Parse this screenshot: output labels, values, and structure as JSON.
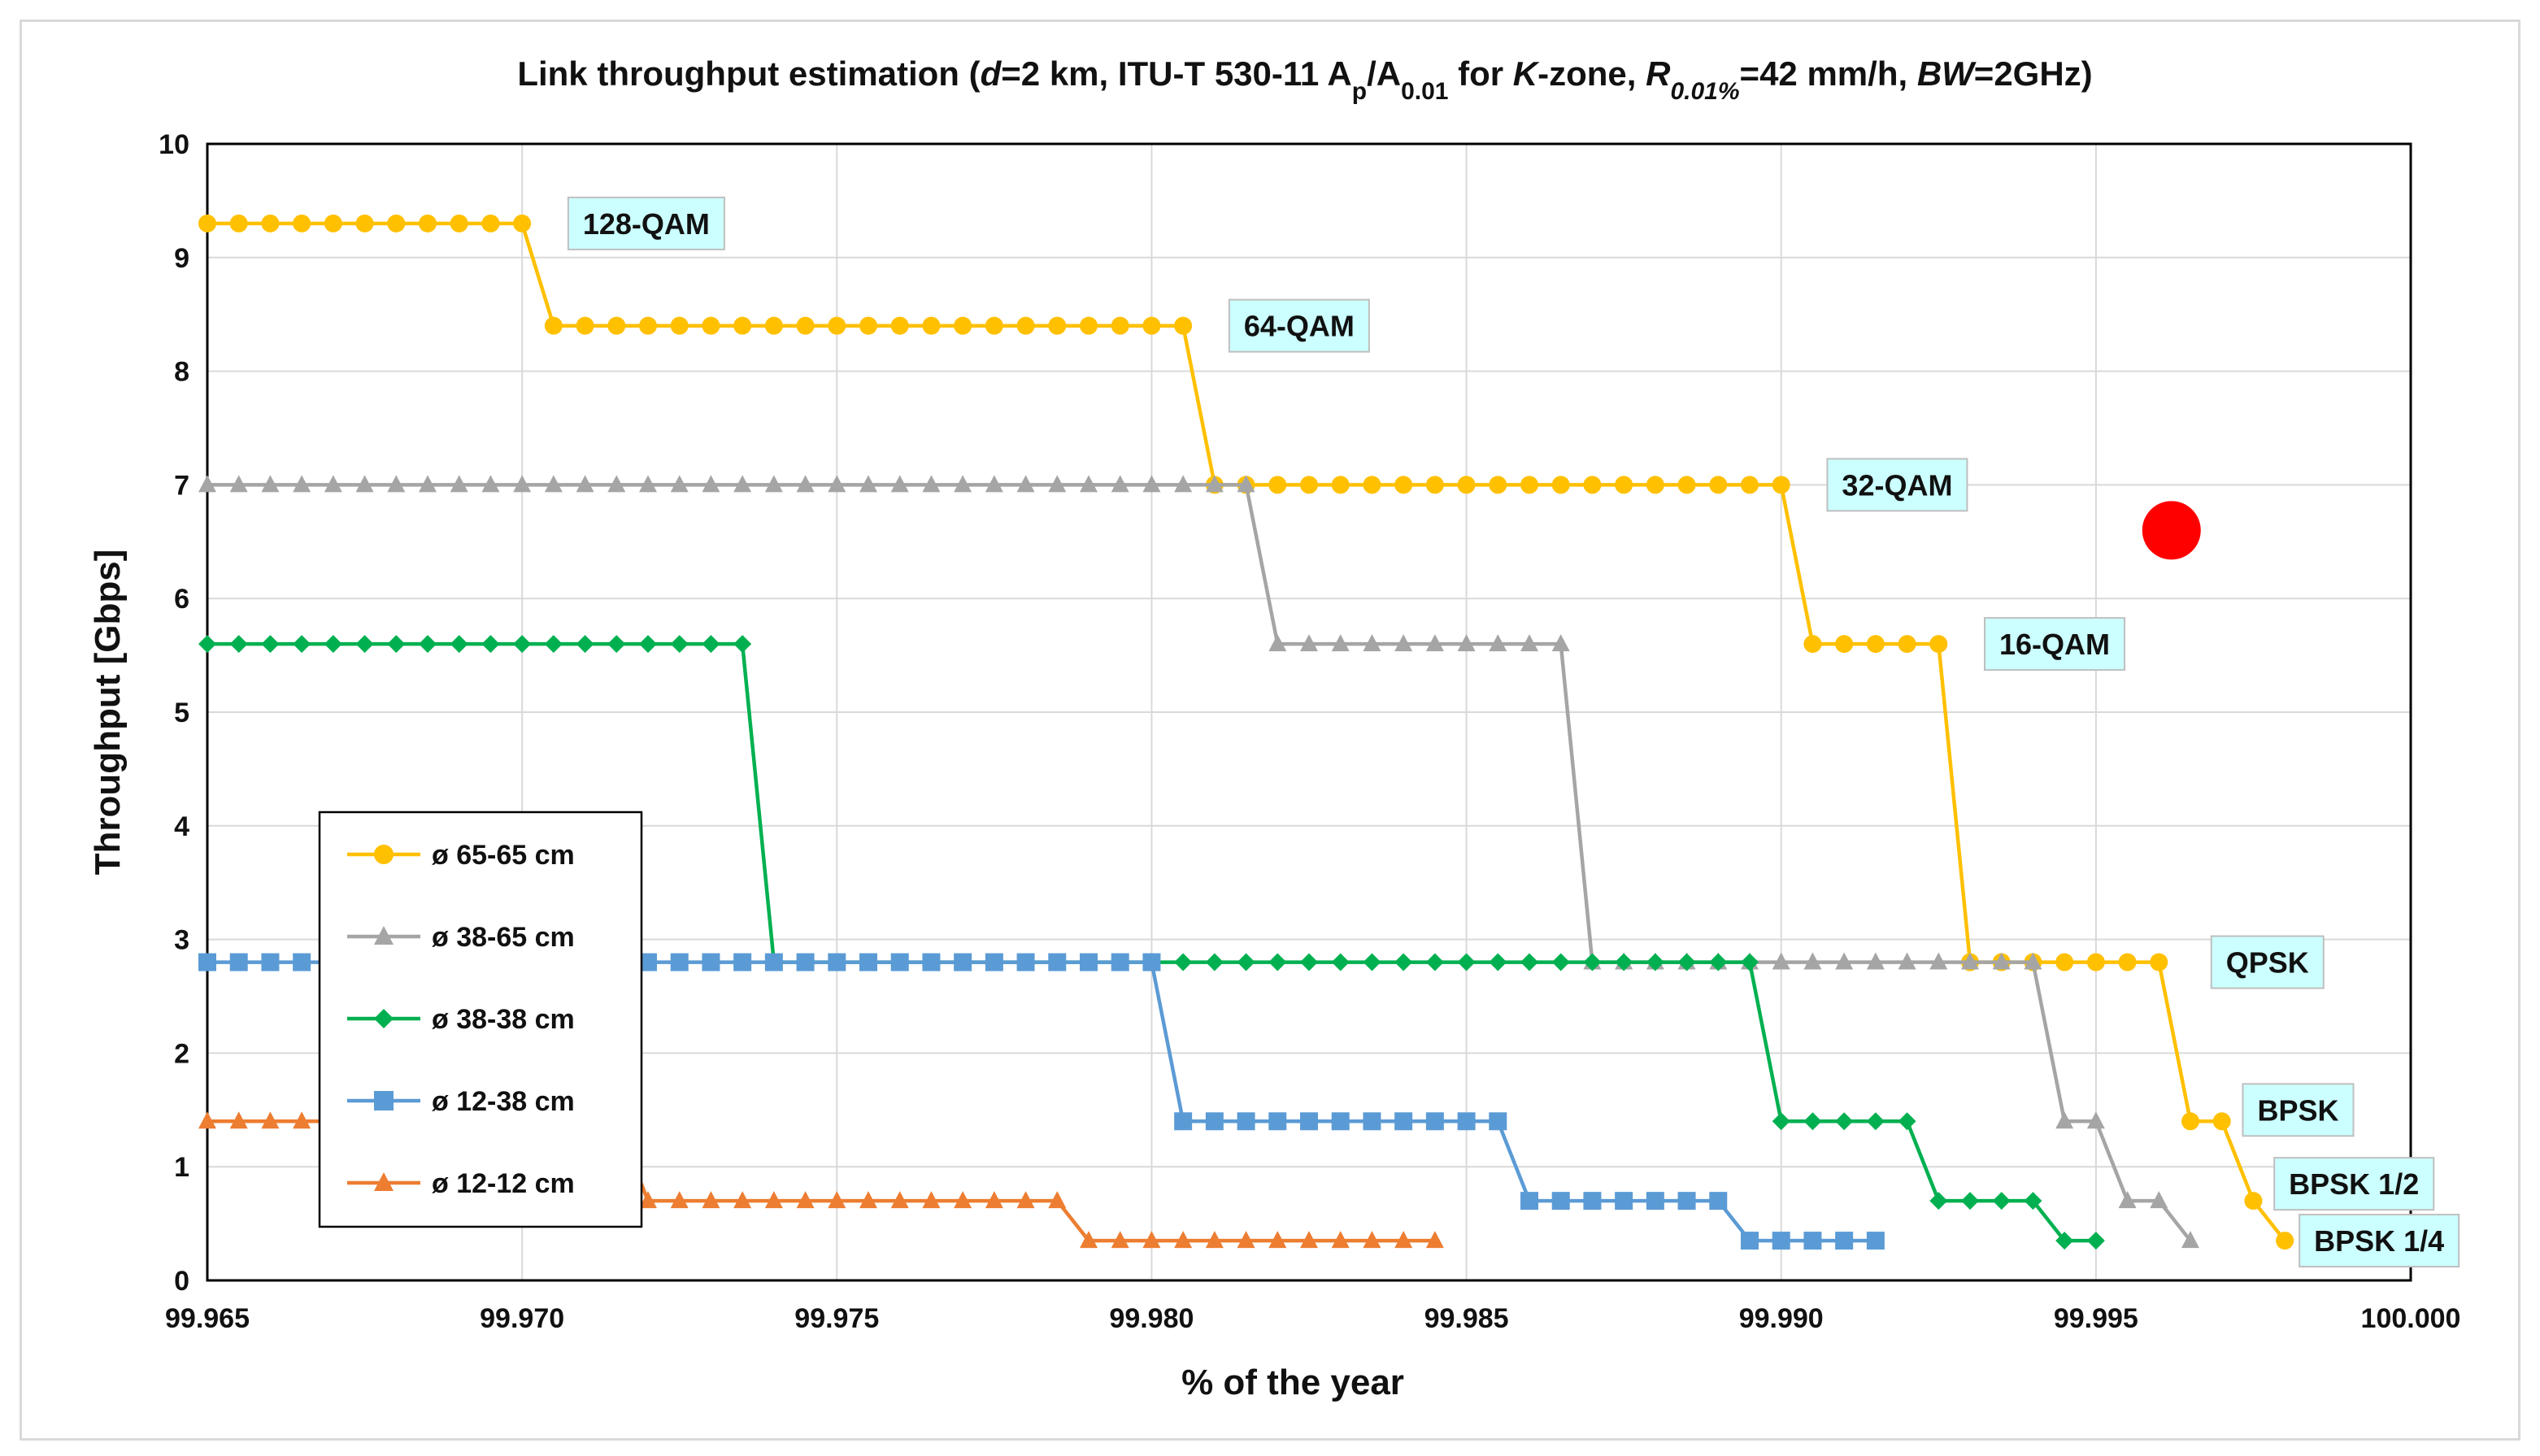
{
  "chart_data": {
    "type": "line",
    "title_parts": [
      {
        "t": "Link throughput estimation ("
      },
      {
        "t": "d",
        "i": 1
      },
      {
        "t": "=2 km, ITU-T 530-11 A"
      },
      {
        "t": "p",
        "sub": 1
      },
      {
        "t": "/A"
      },
      {
        "t": "0.01",
        "sub": 1
      },
      {
        "t": "  for "
      },
      {
        "t": "K",
        "i": 1
      },
      {
        "t": "-zone, "
      },
      {
        "t": "R",
        "i": 1
      },
      {
        "t": "0.01%",
        "sub": 1,
        "i": 1
      },
      {
        "t": "=42 mm/h, "
      },
      {
        "t": "BW",
        "i": 1
      },
      {
        "t": "=2GHz)"
      }
    ],
    "xlabel": "% of the year",
    "ylabel": "Throughput [Gbps]",
    "xlim": [
      99.965,
      100.0
    ],
    "ylim": [
      0,
      10
    ],
    "x_ticks": [
      "99.965",
      "99.970",
      "99.975",
      "99.980",
      "99.985",
      "99.990",
      "99.995",
      "100.000"
    ],
    "y_ticks": [
      "0",
      "1",
      "2",
      "3",
      "4",
      "5",
      "6",
      "7",
      "8",
      "9",
      "10"
    ],
    "grid": true,
    "legend_position": "lower-left",
    "series": [
      {
        "name": "ø 65-65 cm",
        "color": "#FFC000",
        "marker": "circle",
        "segments": [
          [
            99.965,
            99.97,
            9.3
          ],
          [
            99.9705,
            99.9805,
            8.4
          ],
          [
            99.981,
            99.99,
            7.0
          ],
          [
            99.9905,
            99.9925,
            5.6
          ],
          [
            99.993,
            99.996,
            2.8
          ],
          [
            99.9965,
            99.997,
            1.4
          ],
          [
            99.9975,
            99.9975,
            0.7
          ],
          [
            99.998,
            99.998,
            0.35
          ]
        ]
      },
      {
        "name": "ø 38-65 cm",
        "color": "#A5A5A5",
        "marker": "triangle",
        "segments": [
          [
            99.965,
            99.9815,
            7.0
          ],
          [
            99.982,
            99.9865,
            5.6
          ],
          [
            99.987,
            99.994,
            2.8
          ],
          [
            99.9945,
            99.995,
            1.4
          ],
          [
            99.9955,
            99.996,
            0.7
          ],
          [
            99.9965,
            99.9965,
            0.35
          ]
        ]
      },
      {
        "name": "ø 38-38 cm",
        "color": "#00B050",
        "marker": "diamond",
        "segments": [
          [
            99.965,
            99.9735,
            5.6
          ],
          [
            99.974,
            99.9895,
            2.8
          ],
          [
            99.99,
            99.992,
            1.4
          ],
          [
            99.9925,
            99.994,
            0.7
          ],
          [
            99.9945,
            99.995,
            0.35
          ]
        ]
      },
      {
        "name": "ø 12-38 cm",
        "color": "#5B9BD5",
        "marker": "square",
        "segments": [
          [
            99.965,
            99.98,
            2.8
          ],
          [
            99.9805,
            99.9855,
            1.4
          ],
          [
            99.986,
            99.989,
            0.7
          ],
          [
            99.9895,
            99.9915,
            0.35
          ]
        ]
      },
      {
        "name": "ø 12-12 cm",
        "color": "#ED7D31",
        "marker": "triangle",
        "segments": [
          [
            99.965,
            99.9715,
            1.4
          ],
          [
            99.972,
            99.9785,
            0.7
          ],
          [
            99.979,
            99.9845,
            0.35
          ]
        ]
      }
    ],
    "annotations": [
      {
        "text": "128-QAM",
        "x": 99.9705,
        "y": 9.3
      },
      {
        "text": "64-QAM",
        "x": 99.981,
        "y": 8.4
      },
      {
        "text": "32-QAM",
        "x": 99.9905,
        "y": 7.0
      },
      {
        "text": "16-QAM",
        "x": 99.993,
        "y": 5.6
      },
      {
        "text": "QPSK",
        "x": 99.9966,
        "y": 2.8
      },
      {
        "text": "BPSK",
        "x": 99.9971,
        "y": 1.5
      },
      {
        "text": "BPSK 1/2",
        "x": 99.9976,
        "y": 0.85
      },
      {
        "text": "BPSK 1/4",
        "x": 99.998,
        "y": 0.35
      }
    ],
    "marker_dot": {
      "color": "#FF0000",
      "x": 99.9962,
      "y": 6.6
    },
    "label_box_color": "#CCFFFF"
  }
}
